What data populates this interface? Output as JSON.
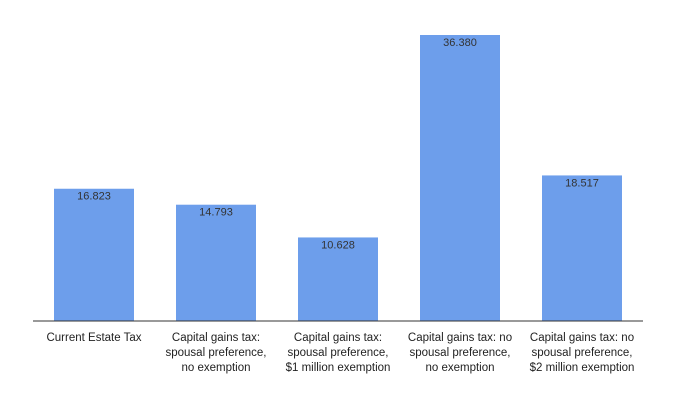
{
  "chart_data": {
    "type": "bar",
    "categories": [
      "Current Estate Tax",
      "Capital gains tax: spousal preference, no exemption",
      "Capital gains tax: spousal preference, $1 million exemption",
      "Capital gains tax: no spousal preference, no exemption",
      "Capital gains tax: no spousal preference, $2 million exemption"
    ],
    "values": [
      16.823,
      14.793,
      10.628,
      36.38,
      18.517
    ],
    "value_labels": [
      "16.823",
      "14.793",
      "10.628",
      "36.380",
      "18.517"
    ],
    "color": "#6d9eeb"
  }
}
